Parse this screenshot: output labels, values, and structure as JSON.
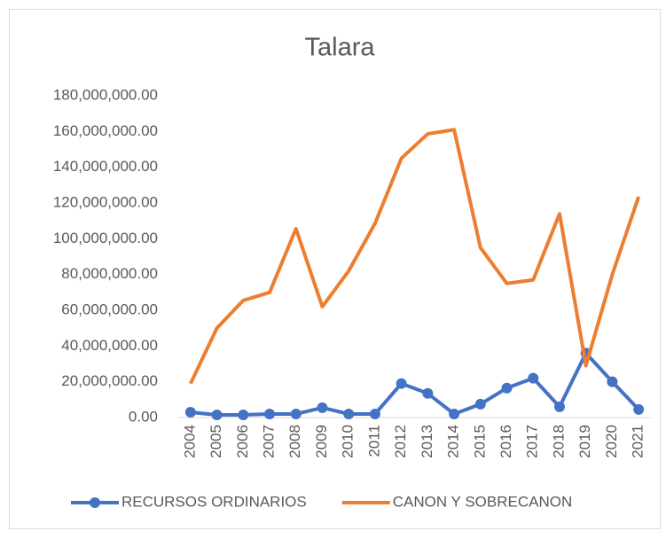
{
  "chart_data": {
    "type": "line",
    "title": "Talara",
    "categories": [
      "2004",
      "2005",
      "2006",
      "2007",
      "2008",
      "2009",
      "2010",
      "2011",
      "2012",
      "2013",
      "2014",
      "2015",
      "2016",
      "2017",
      "2018",
      "2019",
      "2020",
      "2021"
    ],
    "series": [
      {
        "name": "RECURSOS ORDINARIOS",
        "color": "#4472c4",
        "marker": "circle",
        "values": [
          3000000,
          1500000,
          1500000,
          2000000,
          2000000,
          5500000,
          2000000,
          2000000,
          19000000,
          13500000,
          2000000,
          7500000,
          16500000,
          22000000,
          6000000,
          36000000,
          20000000,
          4500000
        ]
      },
      {
        "name": "CANON Y SOBRECANON",
        "color": "#ed7d31",
        "values": [
          19000000,
          50000000,
          65500000,
          70000000,
          105600000,
          62000000,
          82000000,
          108600000,
          145000000,
          158700000,
          161000000,
          95000000,
          75000000,
          77000000,
          114000000,
          29000000,
          80000000,
          123500000
        ]
      }
    ],
    "ylim": [
      0,
      180000000
    ],
    "yticks": [
      {
        "value": 0,
        "label": "0.00"
      },
      {
        "value": 20000000,
        "label": "20,000,000.00"
      },
      {
        "value": 40000000,
        "label": "40,000,000.00"
      },
      {
        "value": 60000000,
        "label": "60,000,000.00"
      },
      {
        "value": 80000000,
        "label": "80,000,000.00"
      },
      {
        "value": 100000000,
        "label": "100,000,000.00"
      },
      {
        "value": 120000000,
        "label": "120,000,000.00"
      },
      {
        "value": 140000000,
        "label": "140,000,000.00"
      },
      {
        "value": 160000000,
        "label": "160,000,000.00"
      },
      {
        "value": 180000000,
        "label": "180,000,000.00"
      }
    ],
    "legend": "bottom"
  }
}
